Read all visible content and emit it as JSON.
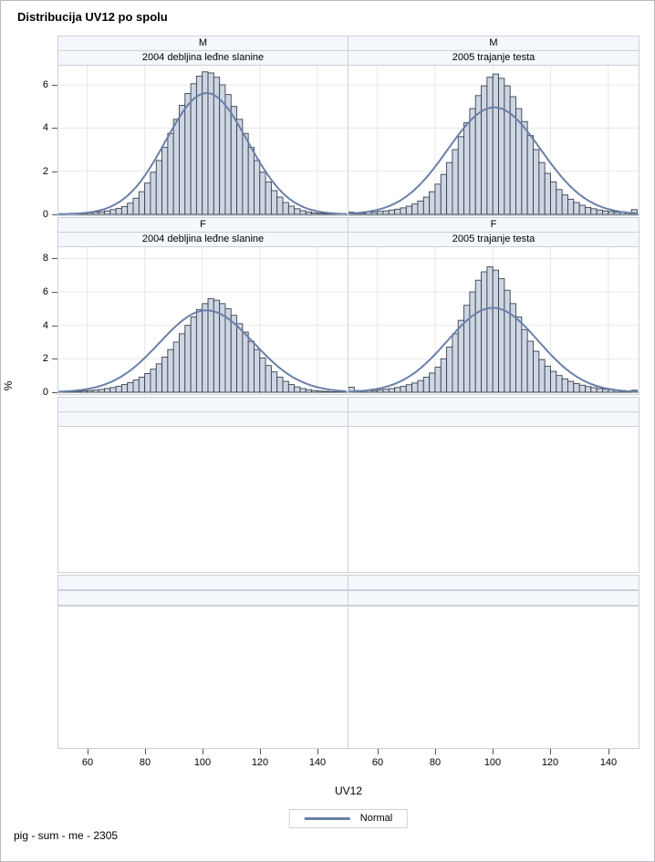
{
  "title": "Distribucija UV12 po spolu",
  "footnote": "pig - sum - me - 2305",
  "axes": {
    "x_label": "UV12",
    "y_label": "%",
    "x_ticks": [
      60,
      80,
      100,
      120,
      140
    ],
    "x_range": [
      50,
      150.5
    ],
    "row1_y_ticks": [
      0,
      2,
      4,
      6
    ],
    "row2_y_ticks": [
      0,
      2,
      4,
      6,
      8
    ]
  },
  "legend": {
    "label": "Normal"
  },
  "grid": {
    "rows": [
      {
        "group_label": "M",
        "panel_titles": [
          "2004 debljina leđne slanine",
          "2005 trajanje testa"
        ],
        "has_data": true
      },
      {
        "group_label": "F",
        "panel_titles": [
          "2004 debljina leđne slanine",
          "2005 trajanje testa"
        ],
        "has_data": true
      },
      {
        "group_label": "",
        "panel_titles": [
          "",
          ""
        ],
        "has_data": false
      },
      {
        "group_label": "",
        "panel_titles": [
          "",
          ""
        ],
        "has_data": false
      }
    ]
  },
  "colors": {
    "bar_fill": "#cdd6e2",
    "bar_stroke": "#3a4150",
    "normal_curve": "#6a80a8",
    "header_bg": "#f4f7fb",
    "border": "#ccd1d7",
    "gridline": "#e8e8e8",
    "axis_line": "#6b6b6b",
    "tick": "#555555",
    "text": "#000000"
  },
  "chart_data": [
    {
      "type": "histogram",
      "group": "M",
      "title": "2004 debljina leđne slanine",
      "xlabel": "UV12",
      "ylabel": "%",
      "x_range": [
        50,
        150.5
      ],
      "y_ticks": [
        0,
        2,
        4,
        6
      ],
      "bin_width": 2,
      "bin_start": 51,
      "bin_step": 2,
      "values": [
        0.03,
        0.02,
        0.05,
        0.03,
        0.06,
        0.07,
        0.1,
        0.12,
        0.16,
        0.22,
        0.28,
        0.36,
        0.52,
        0.75,
        1.05,
        1.45,
        1.95,
        2.5,
        3.1,
        3.75,
        4.4,
        5.05,
        5.6,
        6.05,
        6.4,
        6.6,
        6.55,
        6.35,
        6.0,
        5.55,
        5.0,
        4.4,
        3.75,
        3.1,
        2.5,
        1.95,
        1.5,
        1.1,
        0.8,
        0.55,
        0.38,
        0.26,
        0.17,
        0.11,
        0.07,
        0.05,
        0.03,
        0.02,
        0.02,
        0.04
      ],
      "normal_fit": {
        "mean": 101.5,
        "sd": 14.2
      },
      "overlay": "Normal"
    },
    {
      "type": "histogram",
      "group": "M",
      "title": "2005 trajanje testa",
      "xlabel": "UV12",
      "ylabel": "%",
      "x_range": [
        50,
        150.5
      ],
      "y_ticks": [
        0,
        2,
        4,
        6
      ],
      "bin_width": 2,
      "bin_start": 51,
      "bin_step": 2,
      "values": [
        0.1,
        0.06,
        0.05,
        0.12,
        0.1,
        0.14,
        0.16,
        0.2,
        0.24,
        0.3,
        0.38,
        0.48,
        0.62,
        0.8,
        1.05,
        1.4,
        1.85,
        2.4,
        3.0,
        3.6,
        4.25,
        4.9,
        5.5,
        5.95,
        6.35,
        6.5,
        6.3,
        5.95,
        5.45,
        4.9,
        4.3,
        3.65,
        3.0,
        2.4,
        1.9,
        1.5,
        1.15,
        0.9,
        0.7,
        0.55,
        0.42,
        0.32,
        0.26,
        0.2,
        0.16,
        0.13,
        0.1,
        0.12,
        0.06,
        0.22
      ],
      "normal_fit": {
        "mean": 100.5,
        "sd": 16.1
      },
      "overlay": "Normal"
    },
    {
      "type": "histogram",
      "group": "F",
      "title": "2004 debljina leđne slanine",
      "xlabel": "UV12",
      "ylabel": "%",
      "x_range": [
        50,
        150.5
      ],
      "y_ticks": [
        0,
        2,
        4,
        6,
        8
      ],
      "bin_width": 2,
      "bin_start": 51,
      "bin_step": 2,
      "values": [
        0.04,
        0.03,
        0.05,
        0.06,
        0.08,
        0.1,
        0.13,
        0.17,
        0.22,
        0.28,
        0.36,
        0.46,
        0.58,
        0.73,
        0.9,
        1.12,
        1.38,
        1.7,
        2.1,
        2.55,
        3.0,
        3.5,
        4.0,
        4.5,
        4.95,
        5.3,
        5.6,
        5.5,
        5.3,
        5.0,
        4.6,
        4.1,
        3.6,
        3.05,
        2.55,
        2.05,
        1.6,
        1.22,
        0.9,
        0.65,
        0.46,
        0.32,
        0.22,
        0.15,
        0.1,
        0.07,
        0.05,
        0.03,
        0.02,
        0.02
      ],
      "normal_fit": {
        "mean": 101.5,
        "sd": 16.3
      },
      "overlay": "Normal"
    },
    {
      "type": "histogram",
      "group": "F",
      "title": "2005 trajanje testa",
      "xlabel": "UV12",
      "ylabel": "%",
      "x_range": [
        50,
        150.5
      ],
      "y_ticks": [
        0,
        2,
        4,
        6,
        8
      ],
      "bin_width": 2,
      "bin_start": 51,
      "bin_step": 2,
      "values": [
        0.3,
        0.1,
        0.08,
        0.12,
        0.1,
        0.15,
        0.18,
        0.22,
        0.28,
        0.35,
        0.45,
        0.55,
        0.7,
        0.9,
        1.15,
        1.5,
        2.0,
        2.7,
        3.5,
        4.3,
        5.2,
        6.0,
        6.7,
        7.2,
        7.5,
        7.3,
        6.8,
        6.1,
        5.3,
        4.5,
        3.75,
        3.05,
        2.45,
        1.95,
        1.55,
        1.25,
        1.0,
        0.8,
        0.65,
        0.52,
        0.42,
        0.34,
        0.28,
        0.22,
        0.18,
        0.15,
        0.12,
        0.1,
        0.08,
        0.12
      ],
      "normal_fit": {
        "mean": 100.0,
        "sd": 15.8
      },
      "overlay": "Normal"
    }
  ]
}
